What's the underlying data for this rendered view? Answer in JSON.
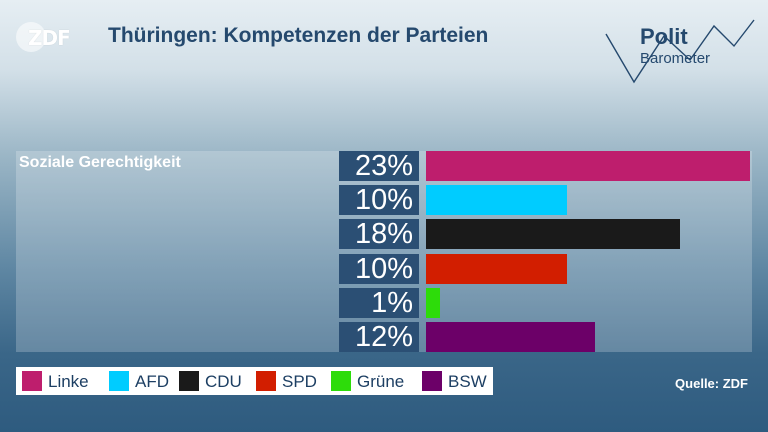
{
  "branding": {
    "logo_text": "ZDF",
    "politbarometer_line1": "Polit",
    "politbarometer_line2": "Barometer"
  },
  "title": "Thüringen: Kompetenzen der Parteien",
  "source": "Quelle: ZDF",
  "colors": {
    "Linke": "#be1e6d",
    "AFD": "#00ccff",
    "CDU": "#1a1a1a",
    "SPD": "#d21e00",
    "Grüne": "#2ddc0a",
    "BSW": "#6c0068"
  },
  "chart_data": {
    "type": "bar",
    "orientation": "horizontal",
    "category": "Soziale Gerechtigkeit",
    "unit": "%",
    "xlim": [
      0,
      23
    ],
    "series": [
      {
        "name": "Linke",
        "value": 23,
        "label": "23%"
      },
      {
        "name": "AFD",
        "value": 10,
        "label": "10%"
      },
      {
        "name": "CDU",
        "value": 18,
        "label": "18%"
      },
      {
        "name": "SPD",
        "value": 10,
        "label": "10%"
      },
      {
        "name": "Grüne",
        "value": 1,
        "label": "1%"
      },
      {
        "name": "BSW",
        "value": 12,
        "label": "12%"
      }
    ],
    "legend": [
      "Linke",
      "AFD",
      "CDU",
      "SPD",
      "Grüne",
      "BSW"
    ],
    "legend_position": "bottom-left"
  }
}
